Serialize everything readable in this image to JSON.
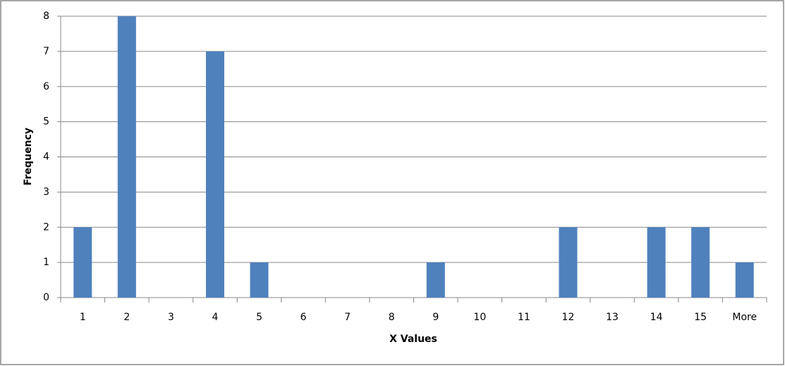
{
  "chart_data": {
    "type": "bar",
    "x_label": "X Values",
    "y_label": "Frequency",
    "categories": [
      "1",
      "2",
      "3",
      "4",
      "5",
      "6",
      "7",
      "8",
      "9",
      "10",
      "11",
      "12",
      "13",
      "14",
      "15",
      "More"
    ],
    "values": [
      2,
      8,
      0,
      7,
      1,
      0,
      0,
      0,
      1,
      0,
      0,
      2,
      0,
      2,
      2,
      1
    ],
    "color": "#4f81bd",
    "ylim": [
      0,
      8
    ],
    "yticks": [
      0,
      1,
      2,
      3,
      4,
      5,
      6,
      7,
      8
    ],
    "grid": true
  }
}
